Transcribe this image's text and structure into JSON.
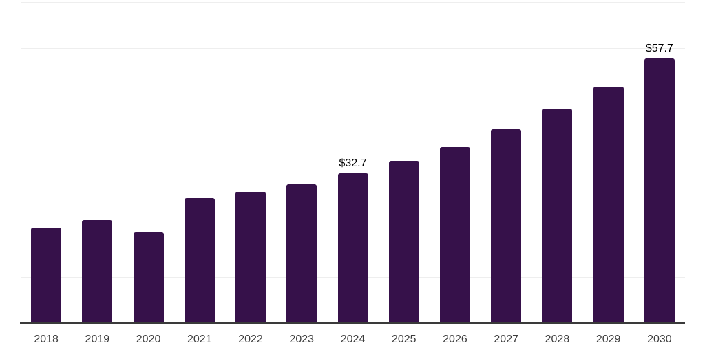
{
  "page": {
    "background_color": "#ffffff"
  },
  "chart_data": {
    "type": "bar",
    "title": "",
    "xlabel": "",
    "ylabel": "",
    "categories": [
      "2018",
      "2019",
      "2020",
      "2021",
      "2022",
      "2023",
      "2024",
      "2025",
      "2026",
      "2027",
      "2028",
      "2029",
      "2030"
    ],
    "values": [
      20.9,
      22.5,
      19.8,
      27.3,
      28.6,
      30.3,
      32.7,
      35.4,
      38.4,
      42.2,
      46.7,
      51.6,
      57.7
    ],
    "value_labels": [
      {
        "category": "2024",
        "text": "$32.7"
      },
      {
        "category": "2030",
        "text": "$57.7"
      }
    ],
    "ylim": [
      0,
      70
    ],
    "gridline_step": 10,
    "grid_on": true,
    "legend_position": "none",
    "bar_color": "#36114a",
    "grid_color": "#eeeeee",
    "axis_color": "#3a3a3a",
    "tick_label_color": "#3d3d3d",
    "value_label_color": "#000000"
  }
}
